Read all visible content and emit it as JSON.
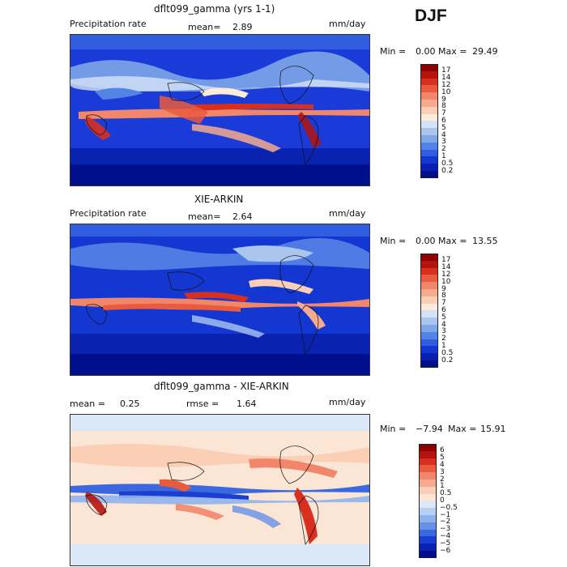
{
  "season": "DJF",
  "panels": [
    {
      "title": "dflt099_gamma (yrs 1-1)",
      "left_label": "Precipitation rate",
      "center_label": "mean=",
      "center_value": "2.89",
      "units": "mm/day",
      "minmax": {
        "min_label": "Min =",
        "min_value": "0.00",
        "max_label": "Max =",
        "max_value": "29.49"
      },
      "colorbar": {
        "labels": [
          "17",
          "14",
          "12",
          "10",
          "9",
          "8",
          "7",
          "6",
          "5",
          "4",
          "3",
          "2",
          "1",
          "0.5",
          "0.2"
        ],
        "colors": [
          "#8b0000",
          "#b5140c",
          "#d8301f",
          "#ea5a3c",
          "#f2866a",
          "#f7aa8e",
          "#fbcfb6",
          "#fdebd9",
          "#d4e2f6",
          "#aac6ef",
          "#7ea6e8",
          "#5483e6",
          "#2f5fe0",
          "#1437d2",
          "#0a1fb4",
          "#00108c"
        ]
      }
    },
    {
      "title": "XIE-ARKIN",
      "left_label": "Precipitation rate",
      "center_label": "mean=",
      "center_value": "2.64",
      "units": "mm/day",
      "minmax": {
        "min_label": "Min =",
        "min_value": "0.00",
        "max_label": "Max =",
        "max_value": "13.55"
      },
      "colorbar": {
        "labels": [
          "17",
          "14",
          "12",
          "10",
          "9",
          "8",
          "7",
          "6",
          "5",
          "4",
          "3",
          "2",
          "1",
          "0.5",
          "0.2"
        ],
        "colors": [
          "#8b0000",
          "#b5140c",
          "#d8301f",
          "#ea5a3c",
          "#f2866a",
          "#f7aa8e",
          "#fbcfb6",
          "#fdebd9",
          "#d4e2f6",
          "#aac6ef",
          "#7ea6e8",
          "#5483e6",
          "#2f5fe0",
          "#1437d2",
          "#0a1fb4",
          "#00108c"
        ]
      }
    },
    {
      "title": "dflt099_gamma - XIE-ARKIN",
      "left_label": "mean =",
      "left_value": "0.25",
      "center_label": "rmse =",
      "center_value": "1.64",
      "units": "mm/day",
      "minmax": {
        "min_label": "Min =",
        "min_value": "−7.94",
        "max_label": "Max =",
        "max_value": "15.91"
      },
      "colorbar": {
        "labels": [
          "6",
          "5",
          "4",
          "3",
          "2",
          "1",
          "0.5",
          "0",
          "−0.5",
          "−1",
          "−2",
          "−3",
          "−4",
          "−5",
          "−6"
        ],
        "colors": [
          "#8b0000",
          "#b5140c",
          "#d8301f",
          "#ea5a3c",
          "#f2866a",
          "#f7aa8e",
          "#fbcfb6",
          "#fde5d2",
          "#dbe8f8",
          "#b7d0f2",
          "#8fb2ec",
          "#6590e6",
          "#3b68de",
          "#1a3fd0",
          "#0a22b0",
          "#00108c"
        ]
      }
    }
  ]
}
